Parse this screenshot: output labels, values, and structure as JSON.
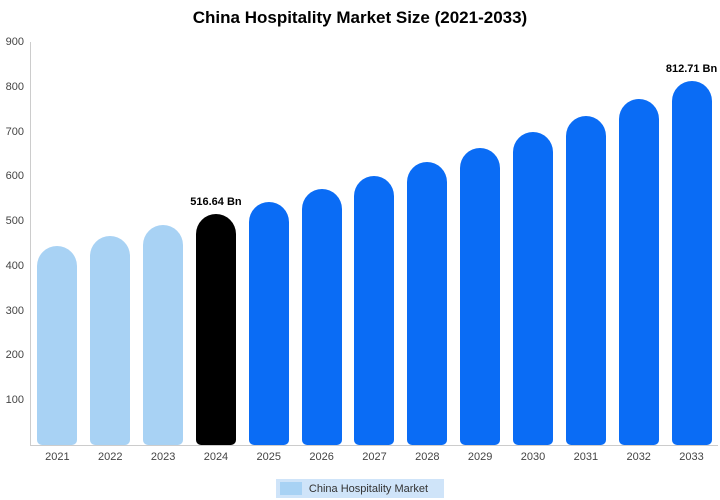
{
  "legend": {
    "label": "China Hospitality Market",
    "swatch_color": "#A8D2F4",
    "background": "#CFE4F9"
  },
  "colors": {
    "historical_bar": "#A8D2F4",
    "base_year_bar": "#000000",
    "forecast_bar": "#0A6CF5",
    "axis_line": "#cccccc",
    "tick_text": "#444444"
  },
  "chart_data": {
    "type": "bar",
    "title": "China Hospitality Market Size (2021-2033)",
    "xlabel": "",
    "ylabel": "",
    "ylim": [
      0,
      900
    ],
    "yticks": [
      900,
      800,
      700,
      600,
      500,
      400,
      300,
      200,
      100
    ],
    "grid": false,
    "legend_position": "bottom",
    "categories": [
      "2021",
      "2022",
      "2023",
      "2024",
      "2025",
      "2026",
      "2027",
      "2028",
      "2029",
      "2030",
      "2031",
      "2032",
      "2033"
    ],
    "values": [
      444,
      467,
      491,
      516.64,
      543,
      571,
      601,
      632,
      664,
      699,
      735,
      773,
      812.71
    ],
    "annotations": [
      "",
      "",
      "",
      "516.64 Bn",
      "",
      "",
      "",
      "",
      "",
      "",
      "",
      "",
      "812.71 Bn"
    ],
    "bar_colors": [
      "#A8D2F4",
      "#A8D2F4",
      "#A8D2F4",
      "#000000",
      "#0A6CF5",
      "#0A6CF5",
      "#0A6CF5",
      "#0A6CF5",
      "#0A6CF5",
      "#0A6CF5",
      "#0A6CF5",
      "#0A6CF5",
      "#0A6CF5"
    ],
    "series_name": "China Hospitality Market"
  }
}
